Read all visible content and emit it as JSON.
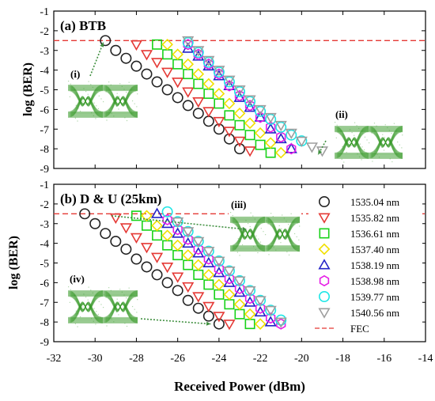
{
  "figure": {
    "xlabel": "Received Power (dBm)",
    "x_ticks": [
      -32,
      -30,
      -28,
      -26,
      -24,
      -22,
      -20,
      -18,
      -16,
      -14
    ],
    "y_ticks": [
      -1,
      -2,
      -3,
      -4,
      -5,
      -6,
      -7,
      -8,
      -9
    ],
    "fec_level": -2.5,
    "fec_color": "#e53935",
    "eye_color": "#3a9a2c",
    "arrow_color": "#3f8f3f"
  },
  "legend": {
    "fec_label": "FEC"
  },
  "chart_data": [
    {
      "type": "scatter",
      "panel": "a",
      "title": "(a) BTB",
      "xlabel": "Received Power (dBm)",
      "ylabel": "log (BER)",
      "xlim": [
        -32,
        -14
      ],
      "ylim": [
        -9,
        -1
      ],
      "grid": false,
      "reference_line": {
        "name": "FEC",
        "y": -2.5,
        "style": "dashed",
        "color": "#e53935"
      },
      "insets": [
        {
          "label": "(i)"
        },
        {
          "label": "(ii)"
        }
      ],
      "series": [
        {
          "name": "1535.04 nm",
          "marker": "circle",
          "color": "#222222",
          "x": [
            -29.5,
            -29,
            -28.5,
            -28,
            -27.5,
            -27,
            -26.5,
            -26,
            -25.5,
            -25,
            -24.5,
            -24,
            -23.5,
            -23
          ],
          "y": [
            -2.5,
            -3.0,
            -3.4,
            -3.8,
            -4.2,
            -4.6,
            -5.0,
            -5.4,
            -5.8,
            -6.2,
            -6.6,
            -7.0,
            -7.5,
            -8.0
          ]
        },
        {
          "name": "1535.82 nm",
          "marker": "triangle-down",
          "color": "#e53935",
          "x": [
            -28,
            -27.5,
            -27,
            -26.5,
            -26,
            -25.5,
            -25,
            -24.5,
            -24,
            -23.5,
            -23,
            -22.5
          ],
          "y": [
            -2.7,
            -3.2,
            -3.6,
            -4.1,
            -4.6,
            -5.1,
            -5.6,
            -6.1,
            -6.6,
            -7.1,
            -7.6,
            -8.1
          ]
        },
        {
          "name": "1536.61 nm",
          "marker": "square",
          "color": "#19d219",
          "x": [
            -27,
            -26.5,
            -26,
            -25.5,
            -25,
            -24.5,
            -24,
            -23.5,
            -23,
            -22.5,
            -22,
            -21.5
          ],
          "y": [
            -2.7,
            -3.2,
            -3.7,
            -4.2,
            -4.7,
            -5.2,
            -5.7,
            -6.3,
            -6.8,
            -7.3,
            -7.8,
            -8.2
          ]
        },
        {
          "name": "1537.40 nm",
          "marker": "diamond",
          "color": "#f1e000",
          "x": [
            -26.5,
            -26,
            -25.5,
            -25,
            -24.5,
            -24,
            -23.5,
            -23,
            -22.5,
            -22,
            -21.5,
            -21
          ],
          "y": [
            -2.7,
            -3.2,
            -3.7,
            -4.2,
            -4.7,
            -5.2,
            -5.7,
            -6.2,
            -6.7,
            -7.2,
            -7.7,
            -8.2
          ]
        },
        {
          "name": "1538.19 nm",
          "marker": "triangle-up",
          "color": "#2424c8",
          "x": [
            -25.5,
            -25,
            -24.5,
            -24,
            -23.5,
            -23,
            -22.5,
            -22,
            -21.5,
            -21,
            -20.5
          ],
          "y": [
            -2.9,
            -3.3,
            -3.8,
            -4.3,
            -4.8,
            -5.4,
            -5.9,
            -6.4,
            -7.0,
            -7.5,
            -8.0
          ]
        },
        {
          "name": "1538.98 nm",
          "marker": "hexagon",
          "color": "#e61ee6",
          "x": [
            -25.5,
            -25,
            -24.5,
            -24,
            -23.5,
            -23,
            -22.5,
            -22,
            -21.5,
            -21,
            -20.5
          ],
          "y": [
            -2.7,
            -3.2,
            -3.7,
            -4.2,
            -4.8,
            -5.3,
            -5.8,
            -6.4,
            -6.9,
            -7.4,
            -8.0
          ]
        },
        {
          "name": "1539.77 nm",
          "marker": "circle",
          "color": "#1ee6e6",
          "x": [
            -25.5,
            -25,
            -24.5,
            -24,
            -23.5,
            -23,
            -22.5,
            -22,
            -21.5,
            -21,
            -20.5,
            -20
          ],
          "y": [
            -2.6,
            -3.1,
            -3.6,
            -4.1,
            -4.6,
            -5.1,
            -5.6,
            -6.1,
            -6.5,
            -6.9,
            -7.3,
            -7.6
          ]
        },
        {
          "name": "1540.56 nm",
          "marker": "triangle-down",
          "color": "#9e9e9e",
          "x": [
            -25.5,
            -25,
            -24.5,
            -24,
            -23.5,
            -23,
            -22.5,
            -22,
            -21.5,
            -21,
            -20.5,
            -20,
            -19.5,
            -19
          ],
          "y": [
            -2.5,
            -3.0,
            -3.5,
            -4.0,
            -4.5,
            -5.0,
            -5.5,
            -6.0,
            -6.4,
            -6.8,
            -7.2,
            -7.6,
            -7.9,
            -8.1
          ]
        }
      ]
    },
    {
      "type": "scatter",
      "panel": "b",
      "title": "(b) D & U (25km)",
      "xlabel": "Received Power (dBm)",
      "ylabel": "log (BER)",
      "xlim": [
        -32,
        -14
      ],
      "ylim": [
        -9,
        -1
      ],
      "grid": false,
      "reference_line": {
        "name": "FEC",
        "y": -2.5,
        "style": "dashed",
        "color": "#e53935"
      },
      "insets": [
        {
          "label": "(iii)"
        },
        {
          "label": "(iv)"
        }
      ],
      "legend_placement": "right",
      "series": [
        {
          "name": "1535.04 nm",
          "marker": "circle",
          "color": "#222222",
          "x": [
            -30.5,
            -30,
            -29.5,
            -29,
            -28.5,
            -28,
            -27.5,
            -27,
            -26.5,
            -26,
            -25.5,
            -25,
            -24.5,
            -24
          ],
          "y": [
            -2.5,
            -3.0,
            -3.5,
            -3.9,
            -4.3,
            -4.8,
            -5.2,
            -5.6,
            -6.0,
            -6.4,
            -6.9,
            -7.3,
            -7.7,
            -8.1
          ]
        },
        {
          "name": "1535.82 nm",
          "marker": "triangle-down",
          "color": "#e53935",
          "x": [
            -29,
            -28.5,
            -28,
            -27.5,
            -27,
            -26.5,
            -26,
            -25.5,
            -25,
            -24.5,
            -24,
            -23.5
          ],
          "y": [
            -2.7,
            -3.2,
            -3.7,
            -4.2,
            -4.7,
            -5.2,
            -5.7,
            -6.2,
            -6.7,
            -7.2,
            -7.7,
            -8.1
          ]
        },
        {
          "name": "1536.61 nm",
          "marker": "square",
          "color": "#19d219",
          "x": [
            -28,
            -27.5,
            -27,
            -26.5,
            -26,
            -25.5,
            -25,
            -24.5,
            -24,
            -23.5,
            -23,
            -22.5
          ],
          "y": [
            -2.6,
            -3.1,
            -3.6,
            -4.1,
            -4.6,
            -5.1,
            -5.6,
            -6.1,
            -6.6,
            -7.1,
            -7.6,
            -8.1
          ]
        },
        {
          "name": "1537.40 nm",
          "marker": "diamond",
          "color": "#f1e000",
          "x": [
            -27.5,
            -27,
            -26.5,
            -26,
            -25.5,
            -25,
            -24.5,
            -24,
            -23.5,
            -23,
            -22.5,
            -22
          ],
          "y": [
            -2.6,
            -3.1,
            -3.6,
            -4.1,
            -4.6,
            -5.1,
            -5.6,
            -6.1,
            -6.6,
            -7.1,
            -7.6,
            -8.1
          ]
        },
        {
          "name": "1538.19 nm",
          "marker": "triangle-up",
          "color": "#2424c8",
          "x": [
            -27,
            -26.5,
            -26,
            -25.5,
            -25,
            -24.5,
            -24,
            -23.5,
            -23,
            -22.5,
            -22,
            -21.5
          ],
          "y": [
            -2.5,
            -3.0,
            -3.5,
            -4.0,
            -4.5,
            -5.0,
            -5.5,
            -6.0,
            -6.5,
            -7.0,
            -7.5,
            -8.0
          ]
        },
        {
          "name": "1538.98 nm",
          "marker": "hexagon",
          "color": "#e61ee6",
          "x": [
            -26.5,
            -26,
            -25.5,
            -25,
            -24.5,
            -24,
            -23.5,
            -23,
            -22.5,
            -22,
            -21.5,
            -21
          ],
          "y": [
            -2.8,
            -3.3,
            -3.8,
            -4.3,
            -4.8,
            -5.3,
            -5.8,
            -6.3,
            -6.8,
            -7.3,
            -7.8,
            -8.1
          ]
        },
        {
          "name": "1539.77 nm",
          "marker": "circle",
          "color": "#1ee6e6",
          "x": [
            -26.5,
            -26,
            -25.5,
            -25,
            -24.5,
            -24,
            -23.5,
            -23,
            -22.5,
            -22,
            -21.5,
            -21
          ],
          "y": [
            -2.4,
            -2.9,
            -3.4,
            -3.9,
            -4.4,
            -4.9,
            -5.4,
            -5.9,
            -6.4,
            -6.9,
            -7.4,
            -7.9
          ]
        },
        {
          "name": "1540.56 nm",
          "marker": "triangle-down",
          "color": "#9e9e9e",
          "x": [
            -26,
            -25.5,
            -25,
            -24.5,
            -24,
            -23.5,
            -23,
            -22.5,
            -22,
            -21.5,
            -21
          ],
          "y": [
            -2.9,
            -3.4,
            -3.9,
            -4.4,
            -4.9,
            -5.4,
            -5.9,
            -6.4,
            -6.9,
            -7.4,
            -8.0
          ]
        }
      ]
    }
  ]
}
